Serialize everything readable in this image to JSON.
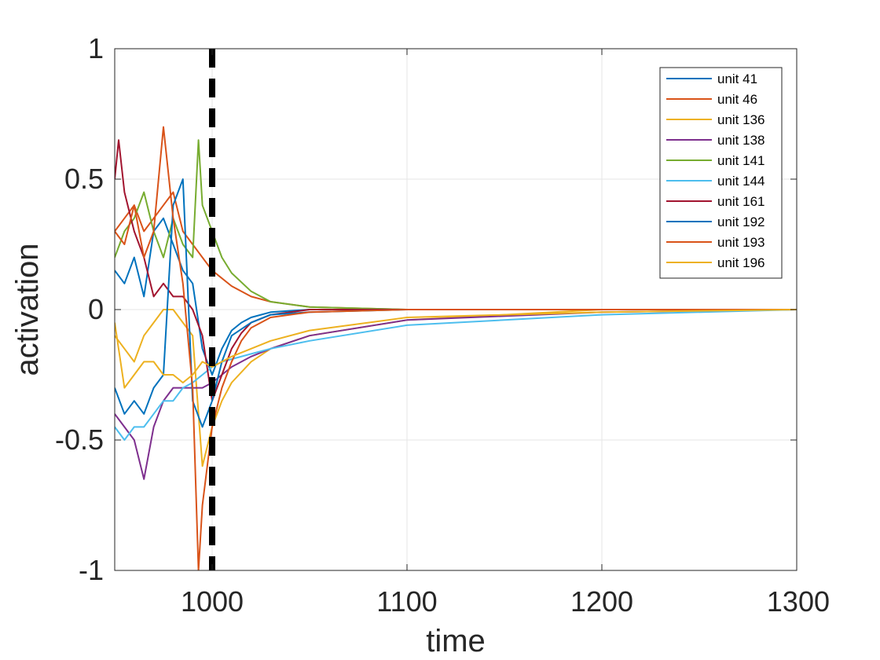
{
  "chart_data": {
    "type": "line",
    "xlabel": "time",
    "ylabel": "activation",
    "xlim": [
      950,
      1300
    ],
    "ylim": [
      -1,
      1
    ],
    "x_ticks": [
      1000,
      1100,
      1200,
      1300
    ],
    "y_ticks": [
      1,
      0.5,
      0,
      -0.5,
      -1
    ],
    "x_tick_labels": [
      "1000",
      "1100",
      "1200",
      "1300"
    ],
    "y_tick_labels": [
      "1",
      "0.5",
      "0",
      "-0.5",
      "-1"
    ],
    "grid": true,
    "legend_position": "top-right",
    "marker_line": {
      "x": 1000,
      "style": "dashed",
      "color": "#000000"
    },
    "series": [
      {
        "name": "unit 41",
        "color": "#0072BD",
        "x": [
          950,
          955,
          960,
          965,
          970,
          975,
          980,
          985,
          990,
          995,
          1000,
          1005,
          1010,
          1015,
          1020,
          1030,
          1050,
          1100,
          1200,
          1300
        ],
        "y": [
          0.15,
          0.1,
          0.2,
          0.05,
          0.3,
          0.35,
          0.25,
          0.15,
          0.1,
          -0.15,
          -0.25,
          -0.15,
          -0.08,
          -0.05,
          -0.03,
          -0.01,
          0,
          0,
          0,
          0
        ]
      },
      {
        "name": "unit 46",
        "color": "#D95319",
        "x": [
          950,
          955,
          960,
          965,
          970,
          975,
          980,
          985,
          990,
          995,
          1000,
          1010,
          1020,
          1030,
          1050,
          1100,
          1200,
          1300
        ],
        "y": [
          0.3,
          0.35,
          0.4,
          0.3,
          0.35,
          0.4,
          0.45,
          0.3,
          0.25,
          0.2,
          0.15,
          0.09,
          0.05,
          0.03,
          0.01,
          0,
          0,
          0
        ]
      },
      {
        "name": "unit 136",
        "color": "#EDB120",
        "x": [
          950,
          955,
          960,
          965,
          970,
          975,
          980,
          985,
          990,
          995,
          1000,
          1005,
          1010,
          1020,
          1030,
          1050,
          1100,
          1200,
          1300
        ],
        "y": [
          -0.1,
          -0.15,
          -0.2,
          -0.1,
          -0.05,
          0,
          0,
          -0.05,
          -0.1,
          -0.6,
          -0.45,
          -0.35,
          -0.28,
          -0.2,
          -0.15,
          -0.1,
          -0.04,
          0,
          0
        ]
      },
      {
        "name": "unit 138",
        "color": "#7E2F8E",
        "x": [
          950,
          955,
          960,
          965,
          970,
          975,
          980,
          985,
          990,
          995,
          1000,
          1005,
          1010,
          1020,
          1030,
          1050,
          1100,
          1200,
          1300
        ],
        "y": [
          -0.4,
          -0.45,
          -0.5,
          -0.65,
          -0.45,
          -0.35,
          -0.3,
          -0.3,
          -0.3,
          -0.3,
          -0.28,
          -0.25,
          -0.22,
          -0.18,
          -0.15,
          -0.1,
          -0.04,
          -0.01,
          0
        ]
      },
      {
        "name": "unit 141",
        "color": "#77AC30",
        "x": [
          950,
          955,
          960,
          965,
          970,
          975,
          980,
          985,
          990,
          993,
          995,
          1000,
          1005,
          1010,
          1020,
          1030,
          1050,
          1100,
          1200,
          1300
        ],
        "y": [
          0.2,
          0.3,
          0.35,
          0.45,
          0.3,
          0.2,
          0.35,
          0.25,
          0.2,
          0.65,
          0.4,
          0.3,
          0.2,
          0.14,
          0.07,
          0.03,
          0.01,
          0,
          0,
          0
        ]
      },
      {
        "name": "unit 144",
        "color": "#4DBEEE",
        "x": [
          950,
          955,
          960,
          965,
          970,
          975,
          980,
          985,
          990,
          995,
          1000,
          1005,
          1010,
          1020,
          1030,
          1050,
          1100,
          1200,
          1300
        ],
        "y": [
          -0.45,
          -0.5,
          -0.45,
          -0.45,
          -0.4,
          -0.35,
          -0.35,
          -0.3,
          -0.28,
          -0.25,
          -0.22,
          -0.2,
          -0.19,
          -0.17,
          -0.15,
          -0.12,
          -0.06,
          -0.02,
          0
        ]
      },
      {
        "name": "unit 161",
        "color": "#A2142F",
        "x": [
          950,
          952,
          955,
          960,
          965,
          970,
          975,
          980,
          985,
          990,
          995,
          1000,
          1005,
          1010,
          1015,
          1020,
          1030,
          1050,
          1100,
          1200,
          1300
        ],
        "y": [
          0.5,
          0.65,
          0.45,
          0.3,
          0.2,
          0.05,
          0.1,
          0.05,
          0.05,
          0.0,
          -0.1,
          -0.35,
          -0.25,
          -0.15,
          -0.09,
          -0.05,
          -0.02,
          0,
          0,
          0,
          0
        ]
      },
      {
        "name": "unit 192",
        "color": "#0072BD",
        "x": [
          950,
          955,
          960,
          965,
          970,
          975,
          980,
          985,
          990,
          995,
          1000,
          1005,
          1010,
          1020,
          1030,
          1050,
          1100,
          1200,
          1300
        ],
        "y": [
          -0.3,
          -0.4,
          -0.35,
          -0.4,
          -0.3,
          -0.25,
          0.4,
          0.5,
          -0.35,
          -0.45,
          -0.35,
          -0.2,
          -0.1,
          -0.05,
          -0.02,
          -0.01,
          0,
          0,
          0
        ]
      },
      {
        "name": "unit 193",
        "color": "#D95319",
        "x": [
          950,
          955,
          960,
          965,
          970,
          975,
          980,
          985,
          990,
          993,
          995,
          1000,
          1005,
          1010,
          1015,
          1020,
          1030,
          1050,
          1100,
          1200,
          1300
        ],
        "y": [
          0.3,
          0.25,
          0.4,
          0.2,
          0.3,
          0.7,
          0.35,
          0.1,
          -0.3,
          -1,
          -0.75,
          -0.45,
          -0.3,
          -0.2,
          -0.12,
          -0.07,
          -0.03,
          -0.01,
          0,
          0,
          0
        ]
      },
      {
        "name": "unit 196",
        "color": "#EDB120",
        "x": [
          950,
          955,
          960,
          965,
          970,
          975,
          980,
          985,
          990,
          995,
          1000,
          1005,
          1010,
          1020,
          1030,
          1050,
          1100,
          1200,
          1300
        ],
        "y": [
          -0.05,
          -0.3,
          -0.25,
          -0.2,
          -0.2,
          -0.25,
          -0.25,
          -0.28,
          -0.25,
          -0.2,
          -0.22,
          -0.2,
          -0.18,
          -0.15,
          -0.12,
          -0.08,
          -0.03,
          -0.01,
          0
        ]
      }
    ]
  }
}
